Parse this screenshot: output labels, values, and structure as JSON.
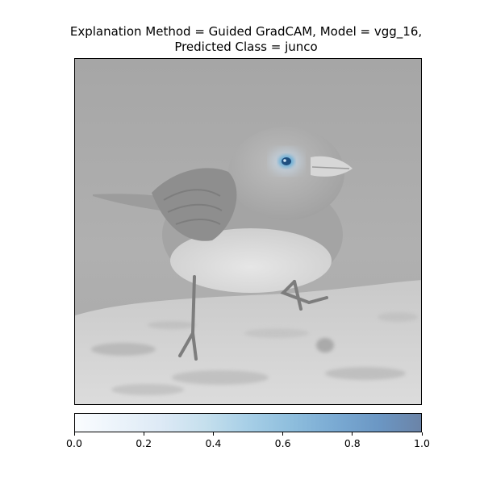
{
  "chart_data": {
    "type": "heatmap",
    "title_lines": [
      "Explanation Method = Guided GradCAM, Model = vgg_16,",
      "Predicted Class = junco"
    ],
    "colorbar": {
      "range": [
        0.0,
        1.0
      ],
      "tick_values": [
        0.0,
        0.2,
        0.4,
        0.6,
        0.8,
        1.0
      ],
      "tick_labels": [
        "0.0",
        "0.2",
        "0.4",
        "0.6",
        "0.8",
        "1.0"
      ],
      "colormap_start": "#f7fbff",
      "colormap_end": "#08306b"
    },
    "heatmap_highlight_region": "bird-eye",
    "grid": false
  },
  "colors": {
    "background_gray": "#a9a9a9",
    "heat_blue": "#2c6fa6"
  }
}
